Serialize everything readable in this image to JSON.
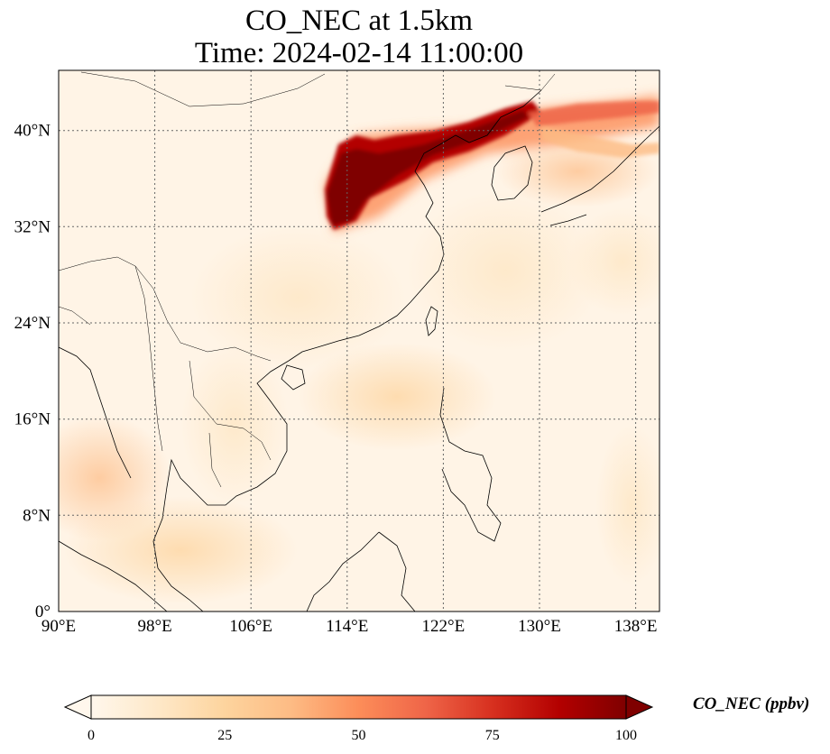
{
  "title": {
    "line1": "CO_NEC at 1.5km",
    "line2": "Time: 2024-02-14 11:00:00"
  },
  "map": {
    "lon_range": [
      90,
      140
    ],
    "lat_range": [
      0,
      45
    ],
    "lon_ticks": [
      "90°E",
      "98°E",
      "106°E",
      "114°E",
      "122°E",
      "130°E",
      "138°E"
    ],
    "lon_tick_values": [
      90,
      98,
      106,
      114,
      122,
      130,
      138
    ],
    "lat_ticks": [
      "0°",
      "8°N",
      "16°N",
      "24°N",
      "32°N",
      "40°N"
    ],
    "lat_tick_values": [
      0,
      8,
      16,
      24,
      32,
      40
    ],
    "gridlines": "dotted"
  },
  "colorbar": {
    "label": "CO_NEC (ppbv)",
    "ticks": [
      "0",
      "25",
      "50",
      "75",
      "100"
    ],
    "tick_values": [
      0,
      25,
      50,
      75,
      100
    ],
    "range": [
      0,
      100
    ],
    "colormap": "OrRd",
    "colors": [
      "#fff7ec",
      "#fee8c8",
      "#fdd49e",
      "#fdbb84",
      "#fc8d59",
      "#ef6548",
      "#d7301f",
      "#b30000",
      "#7f0000"
    ]
  }
}
